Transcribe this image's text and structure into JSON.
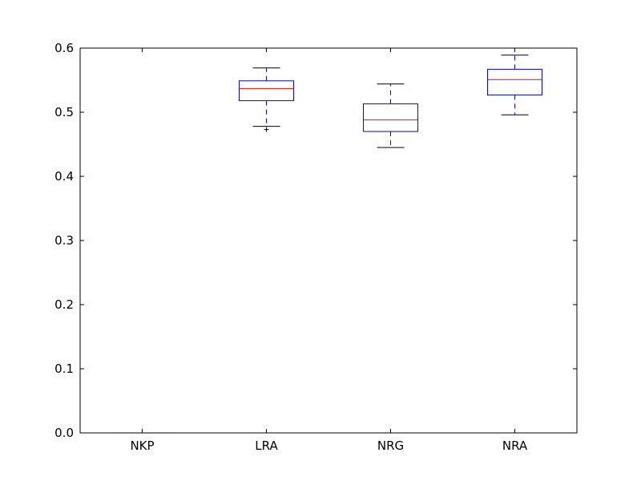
{
  "chart_data": {
    "type": "box",
    "categories": [
      "NKP",
      "LRA",
      "NRG",
      "NRA"
    ],
    "boxes": [
      {
        "name": "NKP",
        "whisker_low": 0.0,
        "q1": 0.0,
        "median": 0.0,
        "q3": 0.0,
        "whisker_high": 0.0,
        "outliers": []
      },
      {
        "name": "LRA",
        "whisker_low": 0.478,
        "q1": 0.518,
        "median": 0.537,
        "q3": 0.549,
        "whisker_high": 0.569,
        "outliers": [
          0.473
        ]
      },
      {
        "name": "NRG",
        "whisker_low": 0.445,
        "q1": 0.47,
        "median": 0.488,
        "q3": 0.513,
        "whisker_high": 0.544,
        "outliers": []
      },
      {
        "name": "NRA",
        "whisker_low": 0.496,
        "q1": 0.527,
        "median": 0.551,
        "q3": 0.567,
        "whisker_high": 0.589,
        "outliers": []
      }
    ],
    "y_ticks": [
      "0.0",
      "0.1",
      "0.2",
      "0.3",
      "0.4",
      "0.5",
      "0.6"
    ],
    "ylim": [
      0.0,
      0.6
    ],
    "title": "",
    "xlabel": "",
    "ylabel": "",
    "grid": false,
    "colors": {
      "box": "#0000ff",
      "median": "#ff0000",
      "whisker_cap": "#000000",
      "outlier": "#000000",
      "axes": "#000000"
    }
  }
}
